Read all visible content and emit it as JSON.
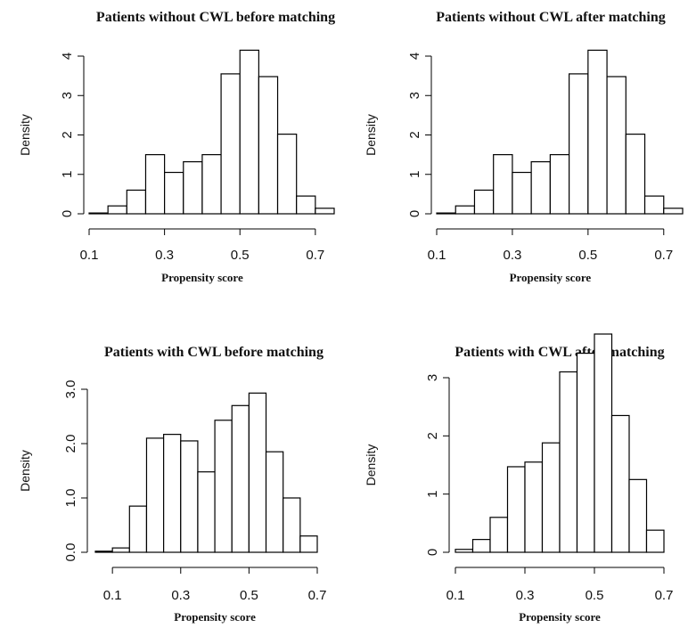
{
  "chart_data": [
    {
      "type": "bar",
      "title": "Patients without CWL before matching",
      "xlabel": "Propensity score",
      "ylabel": "Density",
      "bin_edges": [
        0.1,
        0.15,
        0.2,
        0.25,
        0.3,
        0.35,
        0.4,
        0.45,
        0.5,
        0.55,
        0.6,
        0.65,
        0.7,
        0.75
      ],
      "values": [
        0.02,
        0.2,
        0.6,
        1.5,
        1.05,
        1.32,
        1.5,
        3.55,
        4.15,
        3.48,
        2.02,
        0.45,
        0.14
      ],
      "xlim": [
        0.1,
        0.75
      ],
      "ylim": [
        0,
        4
      ],
      "x_ticks": [
        0.1,
        0.3,
        0.5,
        0.7
      ],
      "x_tick_labels": [
        "0.1",
        "0.3",
        "0.5",
        "0.7"
      ],
      "y_ticks": [
        0,
        1,
        2,
        3,
        4
      ],
      "y_tick_labels": [
        "0",
        "1",
        "2",
        "3",
        "4"
      ]
    },
    {
      "type": "bar",
      "title": "Patients without CWL after matching",
      "xlabel": "Propensity score",
      "ylabel": "Density",
      "bin_edges": [
        0.1,
        0.15,
        0.2,
        0.25,
        0.3,
        0.35,
        0.4,
        0.45,
        0.5,
        0.55,
        0.6,
        0.65,
        0.7,
        0.75
      ],
      "values": [
        0.02,
        0.2,
        0.6,
        1.5,
        1.05,
        1.32,
        1.5,
        3.55,
        4.15,
        3.48,
        2.02,
        0.45,
        0.14
      ],
      "xlim": [
        0.1,
        0.75
      ],
      "ylim": [
        0,
        4
      ],
      "x_ticks": [
        0.1,
        0.3,
        0.5,
        0.7
      ],
      "x_tick_labels": [
        "0.1",
        "0.3",
        "0.5",
        "0.7"
      ],
      "y_ticks": [
        0,
        1,
        2,
        3,
        4
      ],
      "y_tick_labels": [
        "0",
        "1",
        "2",
        "3",
        "4"
      ]
    },
    {
      "type": "bar",
      "title": "Patients with CWL before matching",
      "xlabel": "Propensity score",
      "ylabel": "Density",
      "bin_edges": [
        0.05,
        0.1,
        0.15,
        0.2,
        0.25,
        0.3,
        0.35,
        0.4,
        0.45,
        0.5,
        0.55,
        0.6,
        0.65,
        0.7
      ],
      "values": [
        0.02,
        0.08,
        0.85,
        2.1,
        2.17,
        2.05,
        1.48,
        2.43,
        2.7,
        2.93,
        1.85,
        1.0,
        0.3
      ],
      "xlim": [
        0.05,
        0.7
      ],
      "ylim": [
        0,
        3.0
      ],
      "x_ticks": [
        0.1,
        0.3,
        0.5,
        0.7
      ],
      "x_tick_labels": [
        "0.1",
        "0.3",
        "0.5",
        "0.7"
      ],
      "y_ticks": [
        0,
        1,
        2,
        3
      ],
      "y_tick_labels": [
        "0.0",
        "1.0",
        "2.0",
        "3.0"
      ]
    },
    {
      "type": "bar",
      "title": "Patients with CWL after matching",
      "xlabel": "Propensity score",
      "ylabel": "Density",
      "bin_edges": [
        0.1,
        0.15,
        0.2,
        0.25,
        0.3,
        0.35,
        0.4,
        0.45,
        0.5,
        0.55,
        0.6,
        0.65,
        0.7
      ],
      "values": [
        0.05,
        0.22,
        0.6,
        1.47,
        1.55,
        1.88,
        3.1,
        3.42,
        3.75,
        2.35,
        1.25,
        0.38
      ],
      "xlim": [
        0.1,
        0.7
      ],
      "ylim": [
        0,
        3
      ],
      "x_ticks": [
        0.1,
        0.3,
        0.5,
        0.7
      ],
      "x_tick_labels": [
        "0.1",
        "0.3",
        "0.5",
        "0.7"
      ],
      "y_ticks": [
        0,
        1,
        2,
        3
      ],
      "y_tick_labels": [
        "0",
        "1",
        "2",
        "3"
      ]
    }
  ]
}
